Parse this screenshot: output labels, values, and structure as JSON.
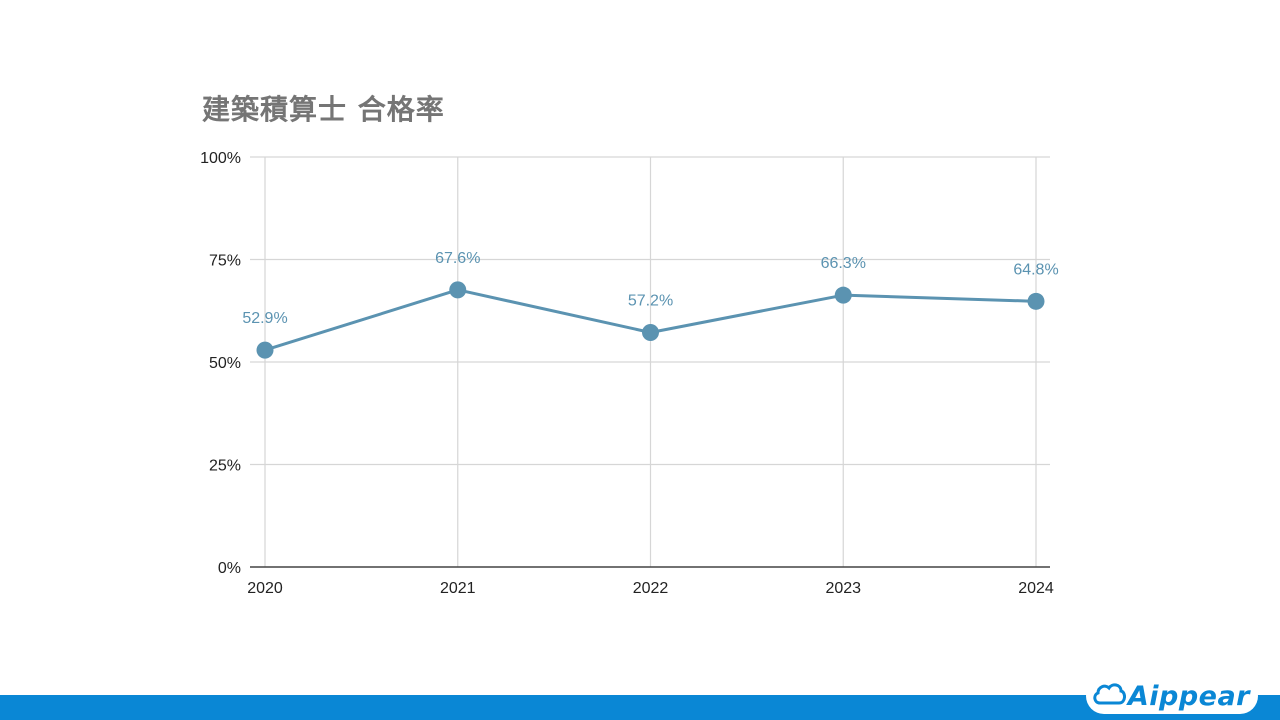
{
  "colors": {
    "line": "#5b93b1",
    "label": "#5b93b1",
    "bar": "#0a87d5",
    "brand": "#0a87d5"
  },
  "brand": {
    "name": "Aippear",
    "icon": "cloud-icon"
  },
  "chart_data": {
    "type": "line",
    "title": "建築積算士 合格率",
    "categories": [
      "2020",
      "2021",
      "2022",
      "2023",
      "2024"
    ],
    "series": [
      {
        "values": [
          52.9,
          67.6,
          57.2,
          66.3,
          64.8
        ]
      }
    ],
    "data_labels": [
      "52.9%",
      "67.6%",
      "57.2%",
      "66.3%",
      "64.8%"
    ],
    "ylim": [
      0,
      100
    ],
    "yticks": [
      0,
      25,
      50,
      75,
      100
    ],
    "ytick_labels": [
      "0%",
      "25%",
      "50%",
      "75%",
      "100%"
    ],
    "xlabel": "",
    "ylabel": "",
    "grid": true,
    "legend": "none"
  }
}
